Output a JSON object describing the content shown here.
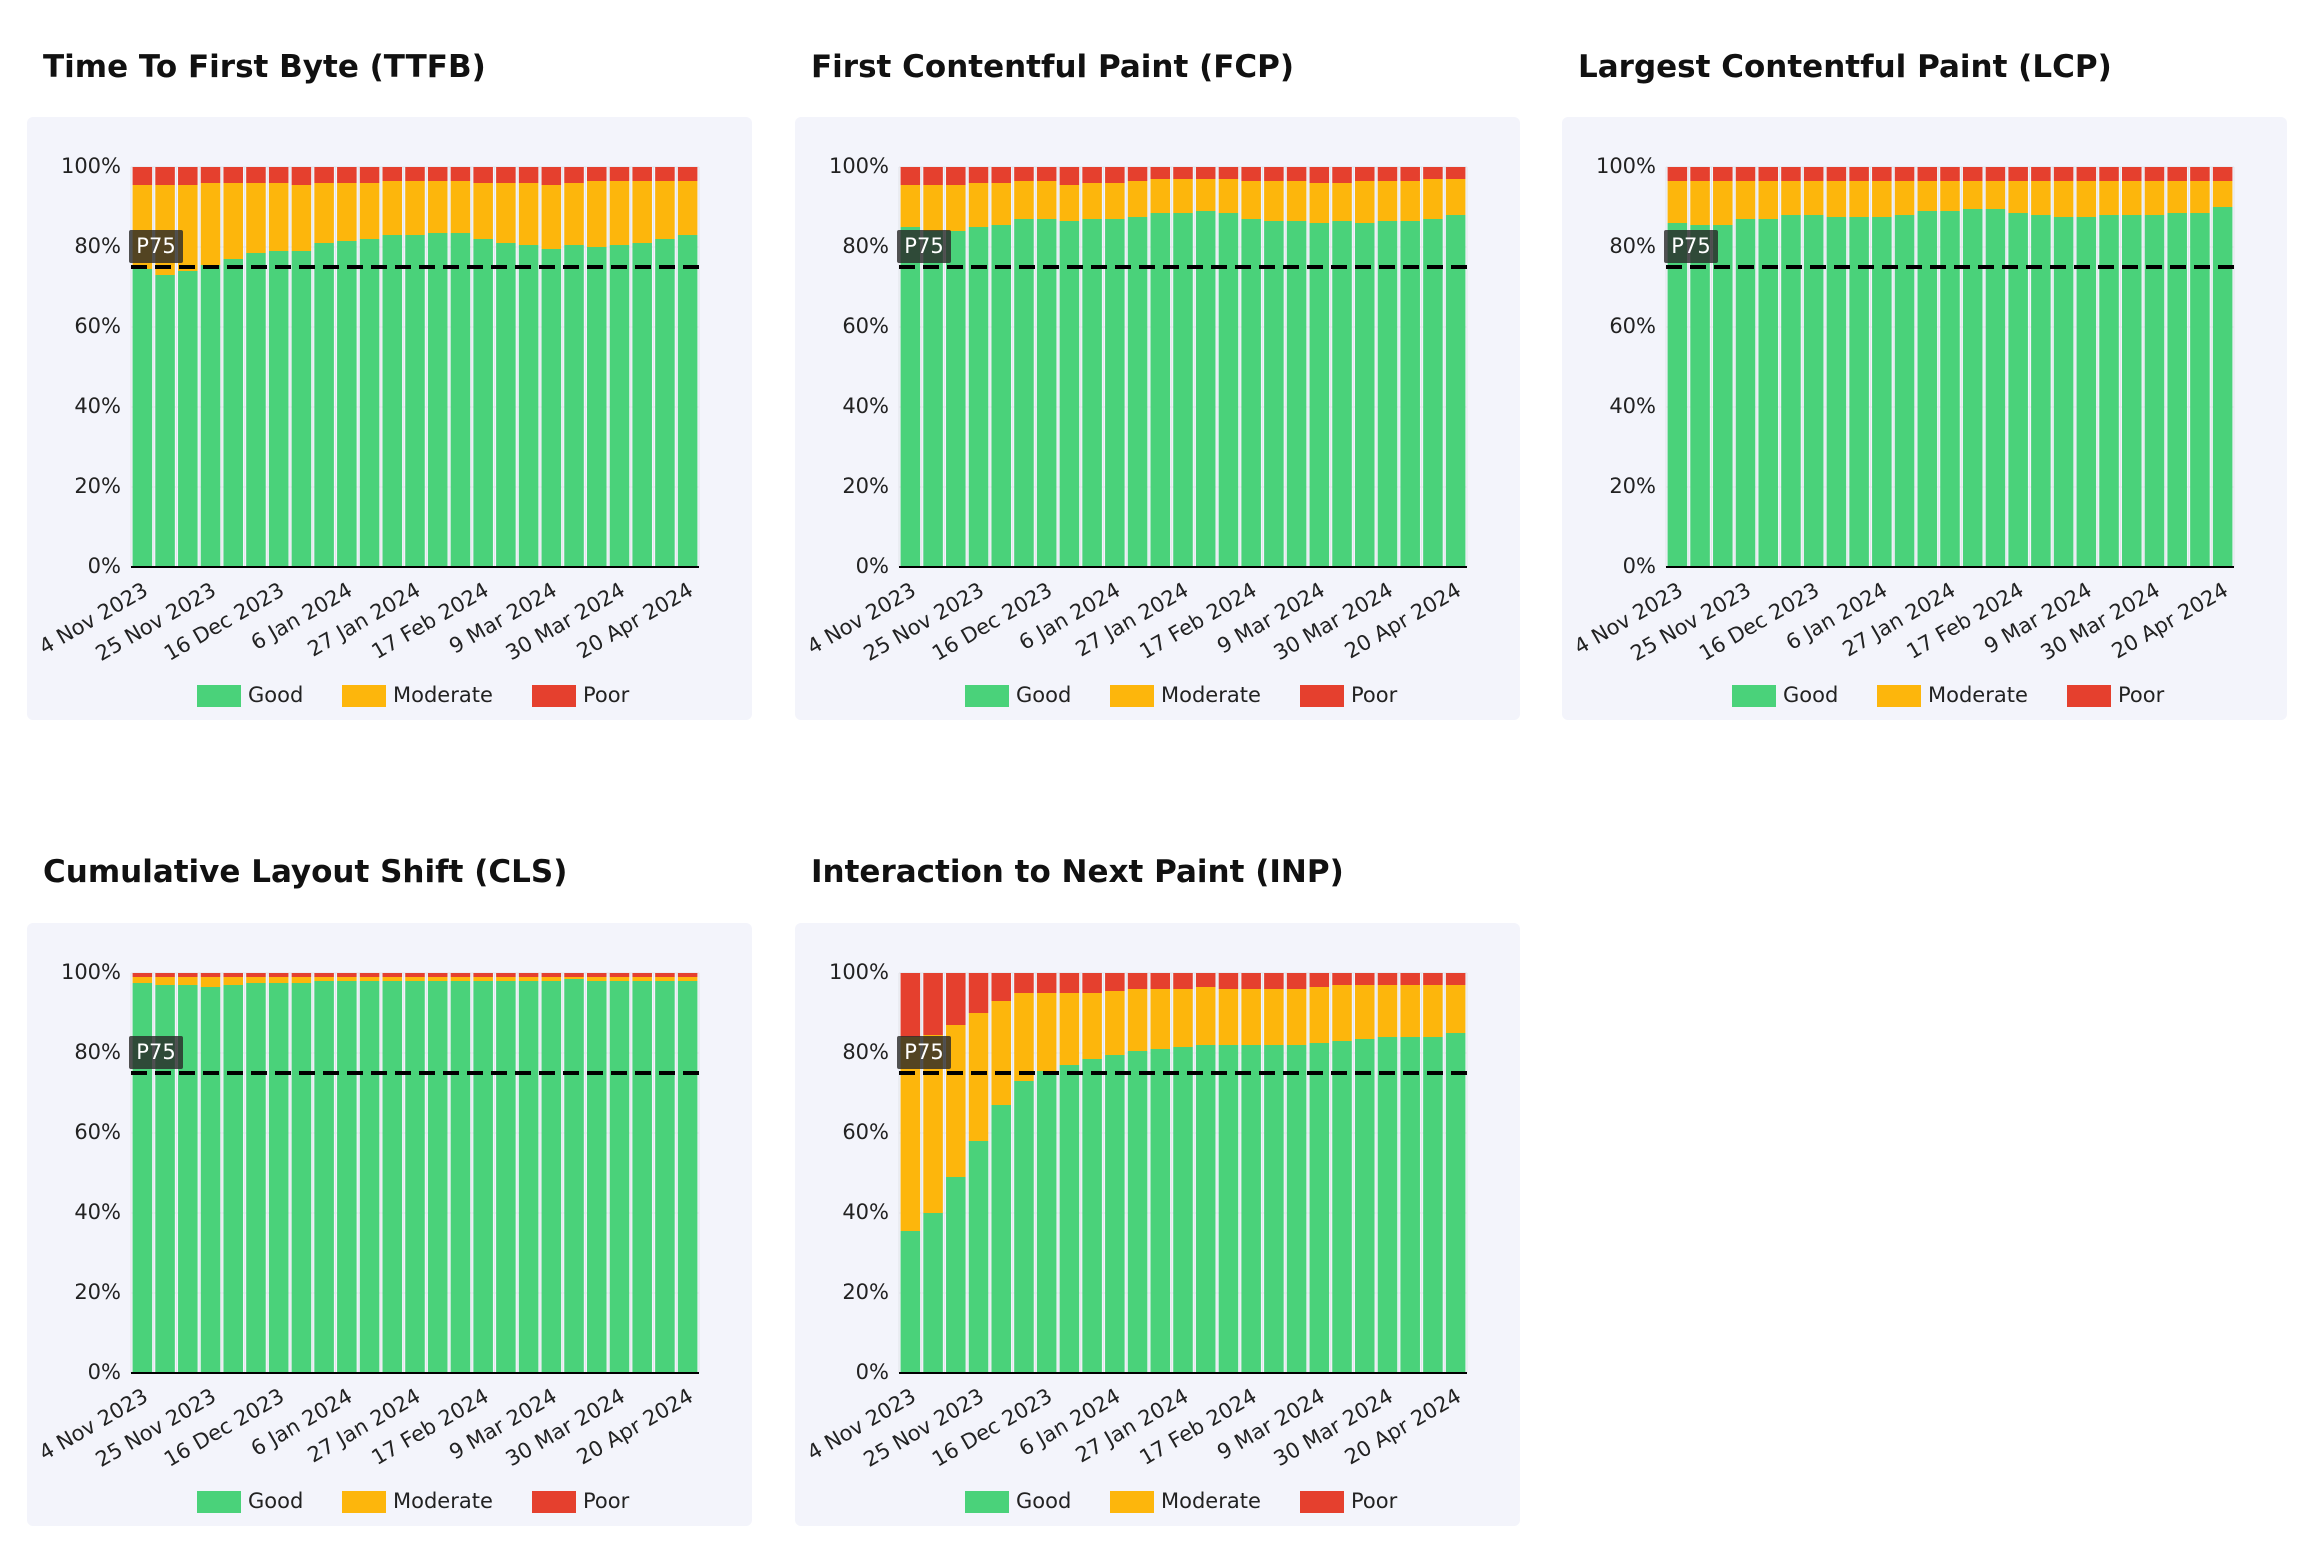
{
  "chart_data": [
    {
      "type": "bar",
      "stacked": true,
      "title": "Time To First Byte (TTFB)",
      "categories": [
        "4 Nov 2023",
        null,
        null,
        "25 Nov 2023",
        null,
        null,
        "16 Dec 2023",
        null,
        null,
        "6 Jan 2024",
        null,
        null,
        "27 Jan 2024",
        null,
        null,
        "17 Feb 2024",
        null,
        null,
        "9 Mar 2024",
        null,
        null,
        "30 Mar 2024",
        null,
        null,
        "20 Apr 2024"
      ],
      "series": [
        {
          "name": "Good",
          "color": "#4ad27a",
          "values": [
            74.5,
            73,
            74,
            75.5,
            77,
            78.5,
            79,
            79,
            81,
            81.5,
            82,
            83,
            83,
            83.5,
            83.5,
            82,
            81,
            80.5,
            79.5,
            80.5,
            80,
            80.5,
            81,
            82,
            83
          ]
        },
        {
          "name": "Moderate",
          "color": "#fdb60c",
          "values": [
            21,
            22.5,
            21.5,
            20.5,
            19,
            17.5,
            17,
            16.5,
            15,
            14.5,
            14,
            13.5,
            13.5,
            13,
            13,
            14,
            15,
            15.5,
            16,
            15.5,
            16.5,
            16,
            15.5,
            14.5,
            13.5
          ]
        },
        {
          "name": "Poor",
          "color": "#e5402e",
          "values": [
            4.5,
            4.5,
            4.5,
            4,
            4,
            4,
            4,
            4.5,
            4,
            4,
            4,
            3.5,
            3.5,
            3.5,
            3.5,
            4,
            4,
            4,
            4.5,
            4,
            3.5,
            3.5,
            3.5,
            3.5,
            3.5
          ]
        }
      ],
      "ylim": [
        0,
        100
      ],
      "yticks": [
        {
          "value": 0,
          "label": "0%"
        },
        {
          "value": 20,
          "label": "20%"
        },
        {
          "value": 40,
          "label": "40%"
        },
        {
          "value": 60,
          "label": "60%"
        },
        {
          "value": 80,
          "label": "80%"
        },
        {
          "value": 100,
          "label": "100%"
        }
      ],
      "reference_line": {
        "value": 75,
        "label": "P75"
      },
      "grid": true
    },
    {
      "type": "bar",
      "stacked": true,
      "title": "First Contentful Paint (FCP)",
      "categories": [
        "4 Nov 2023",
        null,
        null,
        "25 Nov 2023",
        null,
        null,
        "16 Dec 2023",
        null,
        null,
        "6 Jan 2024",
        null,
        null,
        "27 Jan 2024",
        null,
        null,
        "17 Feb 2024",
        null,
        null,
        "9 Mar 2024",
        null,
        null,
        "30 Mar 2024",
        null,
        null,
        "20 Apr 2024"
      ],
      "series": [
        {
          "name": "Good",
          "color": "#4ad27a",
          "values": [
            85,
            84,
            84,
            85,
            85.5,
            87,
            87,
            86.5,
            87,
            87,
            87.5,
            88.5,
            88.5,
            89,
            88.5,
            87,
            86.5,
            86.5,
            86,
            86.5,
            86,
            86.5,
            86.5,
            87,
            88
          ]
        },
        {
          "name": "Moderate",
          "color": "#fdb60c",
          "values": [
            10.5,
            11.5,
            11.5,
            11,
            10.5,
            9.5,
            9.5,
            9,
            9,
            9,
            9,
            8.5,
            8.5,
            8,
            8.5,
            9.5,
            10,
            10,
            10,
            9.5,
            10.5,
            10,
            10,
            10,
            9
          ]
        },
        {
          "name": "Poor",
          "color": "#e5402e",
          "values": [
            4.5,
            4.5,
            4.5,
            4,
            4,
            3.5,
            3.5,
            4.5,
            4,
            4,
            3.5,
            3,
            3,
            3,
            3,
            3.5,
            3.5,
            3.5,
            4,
            4,
            3.5,
            3.5,
            3.5,
            3,
            3
          ]
        }
      ],
      "ylim": [
        0,
        100
      ],
      "yticks": [
        {
          "value": 0,
          "label": "0%"
        },
        {
          "value": 20,
          "label": "20%"
        },
        {
          "value": 40,
          "label": "40%"
        },
        {
          "value": 60,
          "label": "60%"
        },
        {
          "value": 80,
          "label": "80%"
        },
        {
          "value": 100,
          "label": "100%"
        }
      ],
      "reference_line": {
        "value": 75,
        "label": "P75"
      },
      "grid": true
    },
    {
      "type": "bar",
      "stacked": true,
      "title": "Largest Contentful Paint (LCP)",
      "categories": [
        "4 Nov 2023",
        null,
        null,
        "25 Nov 2023",
        null,
        null,
        "16 Dec 2023",
        null,
        null,
        "6 Jan 2024",
        null,
        null,
        "27 Jan 2024",
        null,
        null,
        "17 Feb 2024",
        null,
        null,
        "9 Mar 2024",
        null,
        null,
        "30 Mar 2024",
        null,
        null,
        "20 Apr 2024"
      ],
      "series": [
        {
          "name": "Good",
          "color": "#4ad27a",
          "values": [
            86,
            85.5,
            85.5,
            87,
            87,
            88,
            88,
            87.5,
            87.5,
            87.5,
            88,
            89,
            89,
            89.5,
            89.5,
            88.5,
            88,
            87.5,
            87.5,
            88,
            88,
            88,
            88.5,
            88.5,
            90
          ]
        },
        {
          "name": "Moderate",
          "color": "#fdb60c",
          "values": [
            10.5,
            11,
            11,
            9.5,
            9.5,
            8.5,
            8.5,
            9,
            9,
            9,
            8.5,
            7.5,
            7.5,
            7,
            7,
            8,
            8.5,
            9,
            9,
            8.5,
            8.5,
            8.5,
            8,
            8,
            6.5
          ]
        },
        {
          "name": "Poor",
          "color": "#e5402e",
          "values": [
            3.5,
            3.5,
            3.5,
            3.5,
            3.5,
            3.5,
            3.5,
            3.5,
            3.5,
            3.5,
            3.5,
            3.5,
            3.5,
            3.5,
            3.5,
            3.5,
            3.5,
            3.5,
            3.5,
            3.5,
            3.5,
            3.5,
            3.5,
            3.5,
            3.5
          ]
        }
      ],
      "ylim": [
        0,
        100
      ],
      "yticks": [
        {
          "value": 0,
          "label": "0%"
        },
        {
          "value": 20,
          "label": "20%"
        },
        {
          "value": 40,
          "label": "40%"
        },
        {
          "value": 60,
          "label": "60%"
        },
        {
          "value": 80,
          "label": "80%"
        },
        {
          "value": 100,
          "label": "100%"
        }
      ],
      "reference_line": {
        "value": 75,
        "label": "P75"
      },
      "grid": true
    },
    {
      "type": "bar",
      "stacked": true,
      "title": "Cumulative Layout Shift (CLS)",
      "categories": [
        "4 Nov 2023",
        null,
        null,
        "25 Nov 2023",
        null,
        null,
        "16 Dec 2023",
        null,
        null,
        "6 Jan 2024",
        null,
        null,
        "27 Jan 2024",
        null,
        null,
        "17 Feb 2024",
        null,
        null,
        "9 Mar 2024",
        null,
        null,
        "30 Mar 2024",
        null,
        null,
        "20 Apr 2024"
      ],
      "series": [
        {
          "name": "Good",
          "color": "#4ad27a",
          "values": [
            97.5,
            97,
            97,
            96.5,
            97,
            97.5,
            97.5,
            97.5,
            98,
            98,
            98,
            98,
            98,
            98,
            98,
            98,
            98,
            98,
            98,
            98.5,
            98,
            98,
            98,
            98,
            98
          ]
        },
        {
          "name": "Moderate",
          "color": "#fdb60c",
          "values": [
            1.5,
            2,
            2,
            2.5,
            2,
            1.5,
            1.5,
            1.5,
            1,
            1,
            1,
            1,
            1,
            1,
            1,
            1,
            1,
            1,
            1,
            0.5,
            1,
            1,
            1,
            1,
            1
          ]
        },
        {
          "name": "Poor",
          "color": "#e5402e",
          "values": [
            1,
            1,
            1,
            1,
            1,
            1,
            1,
            1,
            1,
            1,
            1,
            1,
            1,
            1,
            1,
            1,
            1,
            1,
            1,
            1,
            1,
            1,
            1,
            1,
            1
          ]
        }
      ],
      "ylim": [
        0,
        100
      ],
      "yticks": [
        {
          "value": 0,
          "label": "0%"
        },
        {
          "value": 20,
          "label": "20%"
        },
        {
          "value": 40,
          "label": "40%"
        },
        {
          "value": 60,
          "label": "60%"
        },
        {
          "value": 80,
          "label": "80%"
        },
        {
          "value": 100,
          "label": "100%"
        }
      ],
      "reference_line": {
        "value": 75,
        "label": "P75"
      },
      "grid": true
    },
    {
      "type": "bar",
      "stacked": true,
      "title": "Interaction to Next Paint (INP)",
      "categories": [
        "4 Nov 2023",
        null,
        null,
        "25 Nov 2023",
        null,
        null,
        "16 Dec 2023",
        null,
        null,
        "6 Jan 2024",
        null,
        null,
        "27 Jan 2024",
        null,
        null,
        "17 Feb 2024",
        null,
        null,
        "9 Mar 2024",
        null,
        null,
        "30 Mar 2024",
        null,
        null,
        "20 Apr 2024"
      ],
      "series": [
        {
          "name": "Good",
          "color": "#4ad27a",
          "values": [
            35.5,
            40,
            49,
            58,
            67,
            73,
            75.5,
            77,
            78.5,
            79.5,
            80.5,
            81,
            81.5,
            82,
            82,
            82,
            82,
            82,
            82.5,
            83,
            83.5,
            84,
            84,
            84,
            85
          ]
        },
        {
          "name": "Moderate",
          "color": "#fdb60c",
          "values": [
            48.5,
            44.5,
            38,
            32,
            26,
            22,
            19.5,
            18,
            16.5,
            16,
            15.5,
            15,
            14.5,
            14.5,
            14,
            14,
            14,
            14,
            14,
            14,
            13.5,
            13,
            13,
            13,
            12
          ]
        },
        {
          "name": "Poor",
          "color": "#e5402e",
          "values": [
            16,
            15.5,
            13,
            10,
            7,
            5,
            5,
            5,
            5,
            4.5,
            4,
            4,
            4,
            3.5,
            4,
            4,
            4,
            4,
            3.5,
            3,
            3,
            3,
            3,
            3,
            3
          ]
        }
      ],
      "ylim": [
        0,
        100
      ],
      "yticks": [
        {
          "value": 0,
          "label": "0%"
        },
        {
          "value": 20,
          "label": "20%"
        },
        {
          "value": 40,
          "label": "40%"
        },
        {
          "value": 60,
          "label": "60%"
        },
        {
          "value": 80,
          "label": "80%"
        },
        {
          "value": 100,
          "label": "100%"
        }
      ],
      "reference_line": {
        "value": 75,
        "label": "P75"
      },
      "grid": true
    }
  ]
}
